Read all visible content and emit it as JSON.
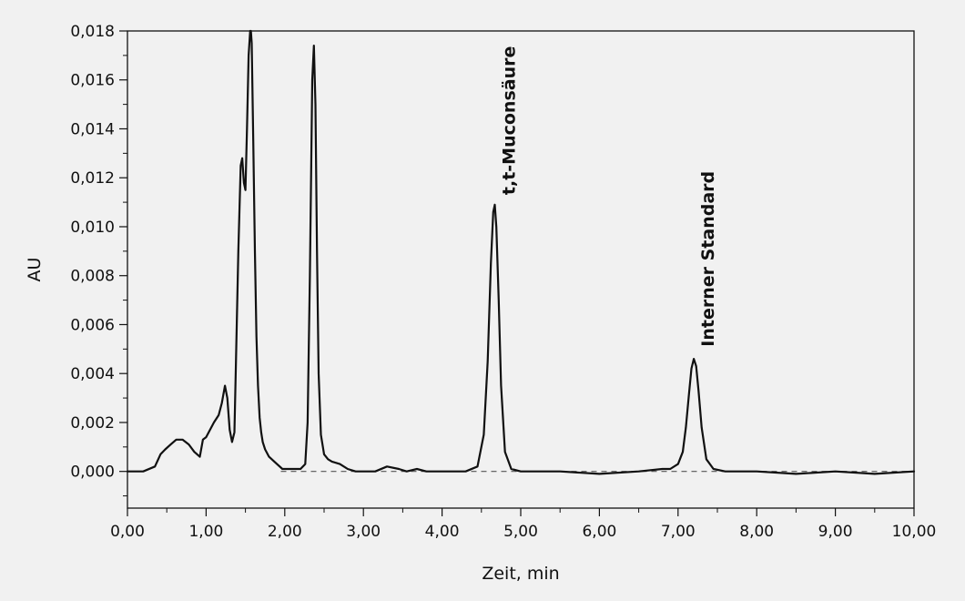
{
  "chart_data": {
    "type": "line",
    "title": "",
    "xlabel": "Zeit, min",
    "ylabel": "AU",
    "xlim": [
      0,
      10
    ],
    "ylim": [
      -0.0015,
      0.018
    ],
    "xticks": [
      "0,00",
      "1,00",
      "2,00",
      "3,00",
      "4,00",
      "5,00",
      "6,00",
      "7,00",
      "8,00",
      "9,00",
      "10,00"
    ],
    "yticks": [
      "0,000",
      "0,002",
      "0,004",
      "0,006",
      "0,008",
      "0,010",
      "0,012",
      "0,014",
      "0,016",
      "0,018"
    ],
    "grid": false,
    "baseline_dashed": true,
    "line_color": "#111111",
    "series": [
      {
        "x": [
          0.0,
          0.2,
          0.35,
          0.42,
          0.48,
          0.55,
          0.62,
          0.7,
          0.78,
          0.85,
          0.92,
          0.96,
          1.0,
          1.05,
          1.1,
          1.16,
          1.2,
          1.24,
          1.27,
          1.3,
          1.33,
          1.36,
          1.38,
          1.41,
          1.44,
          1.46,
          1.48,
          1.5,
          1.52,
          1.54,
          1.56,
          1.57,
          1.58,
          1.6,
          1.62,
          1.64,
          1.66,
          1.68,
          1.7,
          1.72,
          1.75,
          1.8,
          1.9,
          1.97,
          2.0,
          2.1,
          2.2,
          2.26,
          2.29,
          2.32,
          2.35,
          2.37,
          2.39,
          2.41,
          2.43,
          2.46,
          2.5,
          2.55,
          2.6,
          2.7,
          2.8,
          2.9,
          3.0,
          3.15,
          3.3,
          3.45,
          3.55,
          3.68,
          3.8,
          4.0,
          4.3,
          4.45,
          4.53,
          4.58,
          4.62,
          4.65,
          4.67,
          4.69,
          4.72,
          4.75,
          4.8,
          4.88,
          5.0,
          5.5,
          6.0,
          6.5,
          6.8,
          6.9,
          7.0,
          7.06,
          7.1,
          7.14,
          7.17,
          7.2,
          7.23,
          7.26,
          7.3,
          7.36,
          7.45,
          7.6,
          8.0,
          8.5,
          9.0,
          9.5,
          10.0
        ],
        "y": [
          0.0,
          0.0,
          0.0002,
          0.0007,
          0.0009,
          0.0011,
          0.0013,
          0.0013,
          0.0011,
          0.0008,
          0.0006,
          0.0013,
          0.0014,
          0.0017,
          0.002,
          0.0023,
          0.0028,
          0.0035,
          0.003,
          0.0017,
          0.0012,
          0.0016,
          0.0045,
          0.009,
          0.0125,
          0.0128,
          0.0118,
          0.0115,
          0.014,
          0.017,
          0.0185,
          0.0185,
          0.0175,
          0.0135,
          0.009,
          0.0055,
          0.0035,
          0.0022,
          0.0016,
          0.0012,
          0.0009,
          0.0006,
          0.0003,
          0.0001,
          0.0001,
          0.0001,
          0.0001,
          0.0003,
          0.002,
          0.008,
          0.016,
          0.0174,
          0.015,
          0.009,
          0.004,
          0.0015,
          0.0007,
          0.0005,
          0.0004,
          0.0003,
          0.0001,
          0.0,
          0.0,
          0.0,
          0.0002,
          0.0001,
          0.0,
          0.0001,
          0.0,
          0.0,
          0.0,
          0.0002,
          0.0015,
          0.0045,
          0.0085,
          0.0106,
          0.0109,
          0.01,
          0.007,
          0.0035,
          0.0008,
          0.0001,
          0.0,
          0.0,
          -0.0001,
          0.0,
          0.0001,
          0.0001,
          0.0003,
          0.0008,
          0.0018,
          0.0032,
          0.0042,
          0.0046,
          0.0043,
          0.0033,
          0.0018,
          0.0005,
          0.0001,
          0.0,
          0.0,
          -0.0001,
          0.0,
          -0.0001,
          0.0
        ]
      }
    ],
    "annotations": [
      {
        "text": "t,t-Muconsäure",
        "x": 4.67,
        "y": 0.011,
        "rotation": -90
      },
      {
        "text": "Interner Standard",
        "x": 7.2,
        "y": 0.0048,
        "rotation": -90
      }
    ]
  }
}
